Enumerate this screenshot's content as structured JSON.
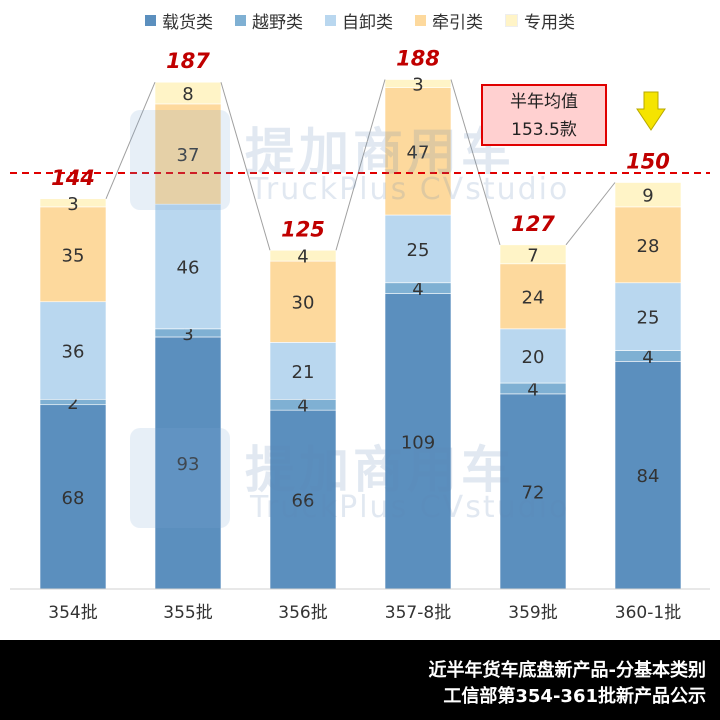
{
  "chart_data": {
    "type": "bar",
    "stacked": true,
    "categories": [
      "354批",
      "355批",
      "356批",
      "357-8批",
      "359批",
      "360-1批"
    ],
    "series": [
      {
        "name": "载货类",
        "color": "#5b8fbe",
        "values": [
          68,
          93,
          66,
          109,
          72,
          84
        ]
      },
      {
        "name": "越野类",
        "color": "#7fb0d3",
        "values": [
          2,
          3,
          4,
          4,
          4,
          4
        ]
      },
      {
        "name": "自卸类",
        "color": "#b9d7ef",
        "values": [
          36,
          46,
          21,
          25,
          20,
          25
        ]
      },
      {
        "name": "牵引类",
        "color": "#fdd99d",
        "values": [
          35,
          37,
          30,
          47,
          24,
          28
        ]
      },
      {
        "name": "专用类",
        "color": "#fff4c7",
        "values": [
          3,
          8,
          4,
          3,
          7,
          9
        ]
      }
    ],
    "totals": [
      "144",
      "187",
      "125",
      "188",
      "127",
      "150"
    ],
    "average": {
      "value": 153.5,
      "label_line1": "半年均值",
      "label_line2": "153.5款"
    },
    "legend_position": "top",
    "colors": {
      "total_labels": "#c00000",
      "average_line": "#e00000",
      "arrow": "#f5e400"
    }
  },
  "watermark": {
    "cn": "提加商用车",
    "en": "TruckPlus CVstudio"
  },
  "footer": {
    "line1": "近半年货车底盘新产品-分基本类别",
    "line2": "工信部第354-361批新产品公示"
  }
}
